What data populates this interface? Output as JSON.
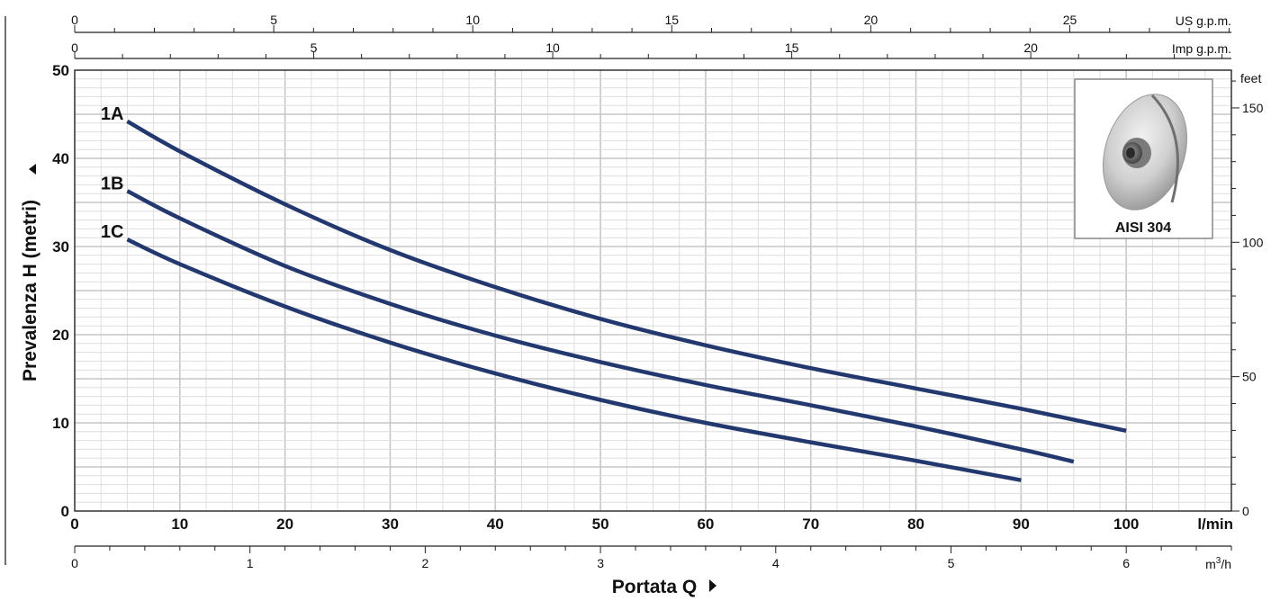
{
  "chart_data": {
    "type": "line",
    "title": "",
    "xlabel": "Portata Q",
    "ylabel": "Prevalenza H (metri)",
    "xlim": [
      0,
      110
    ],
    "ylim": [
      0,
      50
    ],
    "grid": true,
    "x_major_ticks": [
      0,
      10,
      20,
      30,
      40,
      50,
      60,
      70,
      80,
      90,
      100
    ],
    "x_unit": "l/min",
    "y_major_ticks": [
      0,
      10,
      20,
      30,
      40,
      50
    ],
    "secondary_axes": {
      "us_gpm": {
        "unit": "US g.p.m.",
        "ticks": [
          0,
          5,
          10,
          15,
          20,
          25
        ]
      },
      "imp_gpm": {
        "unit": "Imp g.p.m.",
        "ticks": [
          0,
          5,
          10,
          15,
          20
        ]
      },
      "m3h": {
        "unit": "m³/h",
        "unit_base": "m",
        "unit_sup": "3",
        "unit_suffix": "/h",
        "ticks": [
          0,
          1,
          2,
          3,
          4,
          5,
          6
        ]
      },
      "feet": {
        "unit": "feet",
        "ticks": [
          0,
          50,
          100,
          150
        ]
      }
    },
    "series": [
      {
        "name": "1A",
        "color": "#23386e",
        "x": [
          5,
          10,
          20,
          30,
          40,
          50,
          60,
          70,
          80,
          90,
          100
        ],
        "y": [
          44.2,
          40.8,
          34.8,
          29.6,
          25.4,
          21.8,
          18.8,
          16.2,
          13.9,
          11.6,
          9.1
        ]
      },
      {
        "name": "1B",
        "color": "#23386e",
        "x": [
          5,
          10,
          20,
          30,
          40,
          50,
          60,
          70,
          80,
          90,
          95
        ],
        "y": [
          36.3,
          33.2,
          27.8,
          23.5,
          19.9,
          16.9,
          14.3,
          12.0,
          9.6,
          7.0,
          5.6
        ]
      },
      {
        "name": "1C",
        "color": "#23386e",
        "x": [
          5,
          10,
          20,
          30,
          40,
          50,
          60,
          70,
          80,
          90
        ],
        "y": [
          30.8,
          28.0,
          23.2,
          19.1,
          15.6,
          12.6,
          10.0,
          7.8,
          5.7,
          3.5
        ]
      }
    ]
  },
  "inset": {
    "label": "AISI 304",
    "image": "impeller-disc"
  }
}
